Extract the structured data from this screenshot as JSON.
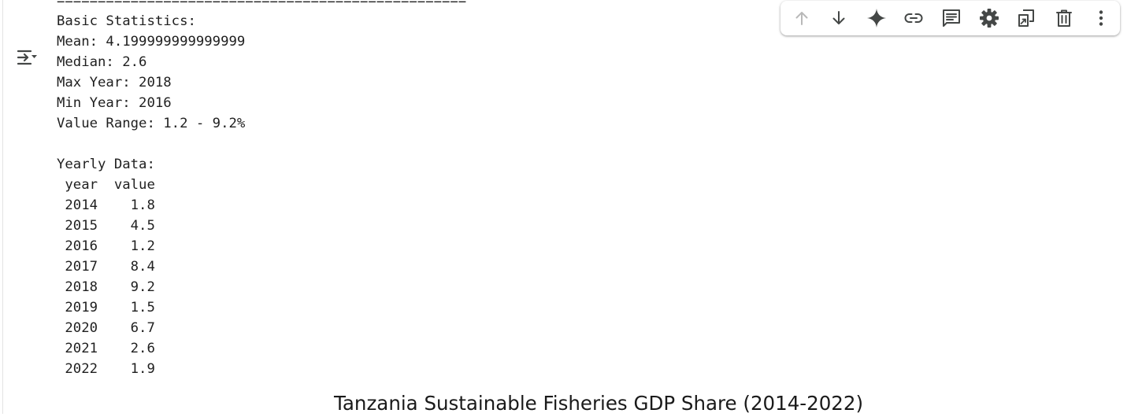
{
  "output": {
    "separator": "==================================================",
    "stats_header": "Basic Statistics:",
    "mean": "Mean: 4.199999999999999",
    "median": "Median: 2.6",
    "max_year": "Max Year: 2018",
    "min_year": "Min Year: 2016",
    "value_range": "Value Range: 1.2 - 9.2%",
    "yearly_header": "Yearly Data:",
    "table_header": " year  value",
    "rows": [
      " 2014    1.8",
      " 2015    4.5",
      " 2016    1.2",
      " 2017    8.4",
      " 2018    9.2",
      " 2019    1.5",
      " 2020    6.7",
      " 2021    2.6",
      " 2022    1.9"
    ]
  },
  "chart": {
    "title": "Tanzania Sustainable Fisheries GDP Share (2014-2022)"
  },
  "toolbar": {
    "icons": [
      "arrow-up-icon",
      "arrow-down-icon",
      "sparkle-icon",
      "link-icon",
      "comment-icon",
      "gear-icon",
      "mirror-cell-icon",
      "trash-icon",
      "more-vert-icon"
    ]
  },
  "colors": {
    "icon": "#444746",
    "icon_disabled": "#b9b9b9",
    "text": "#1f1f1f"
  }
}
